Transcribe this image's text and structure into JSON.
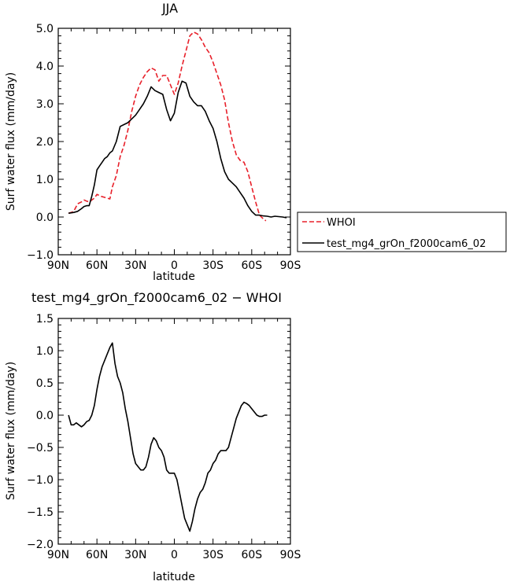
{
  "chart_data": [
    {
      "type": "line",
      "title": "JJA",
      "xlabel": "latitude",
      "ylabel": "Surf water flux (mm/day)",
      "xlim": [
        90,
        -90
      ],
      "ylim": [
        -1.0,
        5.0
      ],
      "x_ticks": [
        90,
        60,
        30,
        0,
        -30,
        -60,
        -90
      ],
      "x_tick_labels": [
        "90N",
        "60N",
        "30N",
        "0",
        "30S",
        "60S",
        "90S"
      ],
      "y_ticks": [
        -1.0,
        0.0,
        1.0,
        2.0,
        3.0,
        4.0,
        5.0
      ],
      "y_tick_labels": [
        "−1.0",
        "0.0",
        "1.0",
        "2.0",
        "3.0",
        "4.0",
        "5.0"
      ],
      "legend_position": "outside-right",
      "series": [
        {
          "name": "WHOI",
          "color": "#e8202a",
          "dash": "dashed",
          "x": [
            82,
            80,
            78,
            75,
            72,
            70,
            68,
            66,
            64,
            62,
            60,
            57,
            54,
            50,
            48,
            45,
            42,
            39,
            36,
            33,
            30,
            27,
            24,
            21,
            18,
            15,
            12,
            9,
            6,
            3,
            0,
            -3,
            -6,
            -9,
            -12,
            -15,
            -18,
            -21,
            -24,
            -27,
            -30,
            -33,
            -36,
            -39,
            -42,
            -45,
            -48,
            -51,
            -54,
            -57,
            -60,
            -63,
            -66,
            -69,
            -71
          ],
          "y": [
            0.1,
            0.12,
            0.15,
            0.35,
            0.4,
            0.45,
            0.42,
            0.4,
            0.45,
            0.5,
            0.6,
            0.55,
            0.52,
            0.48,
            0.8,
            1.1,
            1.6,
            1.9,
            2.3,
            2.8,
            3.2,
            3.5,
            3.7,
            3.85,
            3.95,
            3.9,
            3.6,
            3.75,
            3.75,
            3.5,
            3.25,
            3.55,
            4.0,
            4.4,
            4.8,
            4.9,
            4.85,
            4.7,
            4.5,
            4.35,
            4.1,
            3.8,
            3.5,
            3.1,
            2.5,
            2.0,
            1.65,
            1.5,
            1.45,
            1.2,
            0.8,
            0.4,
            0.05,
            -0.05,
            -0.1
          ]
        },
        {
          "name": "test_mg4_grOn_f2000cam6_02",
          "color": "#000000",
          "dash": "solid",
          "x": [
            82,
            78,
            75,
            72,
            70,
            68,
            66,
            64,
            62,
            60,
            58,
            56,
            54,
            52,
            50,
            48,
            45,
            42,
            39,
            36,
            33,
            30,
            27,
            24,
            21,
            18,
            15,
            12,
            9,
            6,
            3,
            0,
            -3,
            -6,
            -9,
            -12,
            -15,
            -18,
            -21,
            -24,
            -27,
            -30,
            -33,
            -36,
            -39,
            -42,
            -45,
            -48,
            -51,
            -54,
            -57,
            -60,
            -63,
            -66,
            -69,
            -72,
            -75,
            -78,
            -81,
            -84,
            -87
          ],
          "y": [
            0.1,
            0.12,
            0.15,
            0.22,
            0.28,
            0.3,
            0.3,
            0.55,
            0.85,
            1.25,
            1.35,
            1.45,
            1.55,
            1.6,
            1.7,
            1.75,
            2.0,
            2.4,
            2.45,
            2.5,
            2.6,
            2.7,
            2.85,
            3.0,
            3.2,
            3.45,
            3.35,
            3.3,
            3.25,
            2.85,
            2.55,
            2.75,
            3.3,
            3.6,
            3.55,
            3.2,
            3.05,
            2.95,
            2.95,
            2.8,
            2.55,
            2.35,
            2.0,
            1.55,
            1.2,
            1.0,
            0.9,
            0.8,
            0.65,
            0.5,
            0.3,
            0.15,
            0.05,
            0.05,
            0.03,
            0.02,
            0.0,
            0.02,
            0.01,
            0.0,
            -0.02
          ]
        }
      ]
    },
    {
      "type": "line",
      "title": "test_mg4_grOn_f2000cam6_02 − WHOI",
      "xlabel": "latitude",
      "ylabel": "Surf water flux (mm/day)",
      "xlim": [
        90,
        -90
      ],
      "ylim": [
        -2.0,
        1.5
      ],
      "x_ticks": [
        90,
        60,
        30,
        0,
        -30,
        -60,
        -90
      ],
      "x_tick_labels": [
        "90N",
        "60N",
        "30N",
        "0",
        "30S",
        "60S",
        "90S"
      ],
      "y_ticks": [
        -2.0,
        -1.5,
        -1.0,
        -0.5,
        0.0,
        0.5,
        1.0,
        1.5
      ],
      "y_tick_labels": [
        "−2.0",
        "−1.5",
        "−1.0",
        "−0.5",
        "0.0",
        "0.5",
        "1.0",
        "1.5"
      ],
      "series": [
        {
          "color": "#000000",
          "dash": "solid",
          "x": [
            82,
            80,
            78,
            76,
            74,
            72,
            70,
            68,
            66,
            64,
            62,
            60,
            58,
            56,
            54,
            52,
            50,
            48,
            46,
            44,
            42,
            40,
            38,
            36,
            34,
            32,
            30,
            28,
            26,
            24,
            22,
            20,
            18,
            16,
            14,
            12,
            10,
            8,
            6,
            4,
            2,
            0,
            -2,
            -4,
            -6,
            -8,
            -10,
            -12,
            -14,
            -16,
            -18,
            -20,
            -22,
            -24,
            -26,
            -28,
            -30,
            -32,
            -34,
            -36,
            -38,
            -40,
            -42,
            -44,
            -46,
            -48,
            -50,
            -52,
            -54,
            -56,
            -58,
            -60,
            -62,
            -64,
            -66,
            -68,
            -70,
            -72
          ],
          "y": [
            0.0,
            -0.15,
            -0.15,
            -0.12,
            -0.15,
            -0.18,
            -0.15,
            -0.1,
            -0.08,
            0.0,
            0.15,
            0.4,
            0.6,
            0.75,
            0.85,
            0.95,
            1.05,
            1.12,
            0.8,
            0.6,
            0.5,
            0.35,
            0.1,
            -0.1,
            -0.35,
            -0.6,
            -0.75,
            -0.8,
            -0.85,
            -0.85,
            -0.8,
            -0.65,
            -0.45,
            -0.35,
            -0.4,
            -0.5,
            -0.55,
            -0.65,
            -0.85,
            -0.9,
            -0.9,
            -0.9,
            -1.0,
            -1.2,
            -1.4,
            -1.6,
            -1.7,
            -1.8,
            -1.65,
            -1.45,
            -1.3,
            -1.2,
            -1.15,
            -1.05,
            -0.9,
            -0.85,
            -0.75,
            -0.7,
            -0.6,
            -0.55,
            -0.55,
            -0.55,
            -0.5,
            -0.35,
            -0.2,
            -0.05,
            0.05,
            0.15,
            0.2,
            0.18,
            0.15,
            0.1,
            0.05,
            0.0,
            -0.02,
            -0.02,
            0.0,
            0.0
          ]
        }
      ]
    }
  ]
}
